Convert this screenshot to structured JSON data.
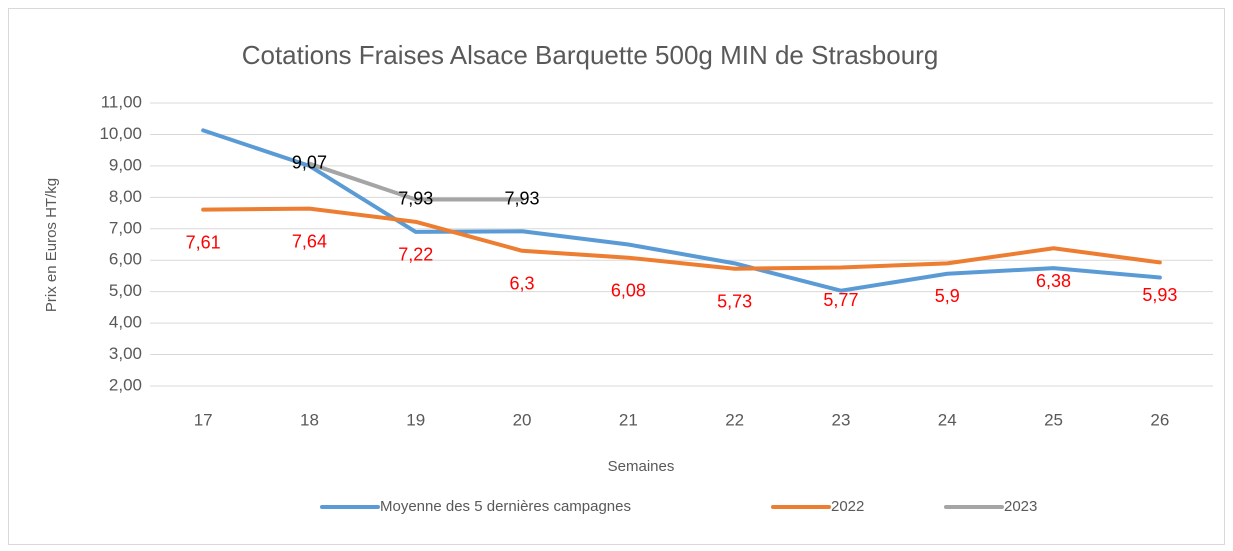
{
  "chart_data": {
    "type": "line",
    "title": "Cotations Fraises Alsace Barquette 500g  MIN de Strasbourg",
    "x_label": "Semaines",
    "y_label": "Prix en Euros HT/kg",
    "categories": [
      "17",
      "18",
      "19",
      "20",
      "21",
      "22",
      "23",
      "24",
      "25",
      "26"
    ],
    "ylim": [
      2,
      11
    ],
    "yticks": [
      {
        "value": 2,
        "label": "2,00"
      },
      {
        "value": 3,
        "label": "3,00"
      },
      {
        "value": 4,
        "label": "4,00"
      },
      {
        "value": 5,
        "label": "5,00"
      },
      {
        "value": 6,
        "label": "6,00"
      },
      {
        "value": 7,
        "label": "7,00"
      },
      {
        "value": 8,
        "label": "8,00"
      },
      {
        "value": 9,
        "label": "9,00"
      },
      {
        "value": 10,
        "label": "10,00"
      },
      {
        "value": 11,
        "label": "11,00"
      }
    ],
    "grid": true,
    "legend": "bottom",
    "series": [
      {
        "name": "Moyenne des 5 dernières campagnes",
        "color": "#5b9bd5",
        "values": [
          10.13,
          9.0,
          6.9,
          6.92,
          6.5,
          5.9,
          5.03,
          5.57,
          5.75,
          5.45
        ]
      },
      {
        "name": "2022",
        "color": "#ed7d31",
        "label_color": "#ff0000",
        "values": [
          7.61,
          7.64,
          7.22,
          6.3,
          6.08,
          5.73,
          5.77,
          5.9,
          6.38,
          5.93
        ],
        "value_labels": [
          "7,61",
          "7,64",
          "7,22",
          "6,3",
          "6,08",
          "5,73",
          "5,77",
          "5,9",
          "6,38",
          "5,93"
        ]
      },
      {
        "name": "2023",
        "color": "#a5a5a5",
        "label_color": "#000000",
        "values": [
          null,
          9.07,
          7.93,
          7.93,
          null,
          null,
          null,
          null,
          null,
          null
        ],
        "value_labels": [
          null,
          "9,07",
          "7,93",
          "7,93",
          null,
          null,
          null,
          null,
          null,
          null
        ]
      }
    ]
  }
}
